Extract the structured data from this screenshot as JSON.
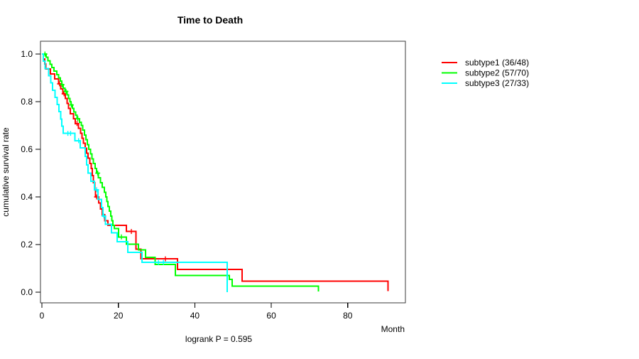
{
  "title": "Time to Death",
  "footer": "logrank P = 0.595",
  "axes": {
    "x_label": "Month",
    "y_label": "cumulative survival rate"
  },
  "chart_data": {
    "type": "line",
    "variant": "kaplan-meier-step",
    "title": "Time to Death",
    "xlabel": "Month",
    "ylabel": "cumulative survival rate",
    "annotation": "logrank P = 0.595",
    "xlim": [
      0,
      95
    ],
    "ylim": [
      0,
      1.0
    ],
    "xticks": [
      0,
      20,
      40,
      60,
      80
    ],
    "yticks": [
      0.0,
      0.2,
      0.4,
      0.6,
      0.8,
      1.0
    ],
    "grid": false,
    "legend_position": "right-outside",
    "series": [
      {
        "name": "subtype1 (36/48)",
        "color": "#ff0000",
        "steps": [
          [
            0,
            1.0
          ],
          [
            0.4,
            0.979
          ],
          [
            0.7,
            0.958
          ],
          [
            1.0,
            0.938
          ],
          [
            2.2,
            0.917
          ],
          [
            3.3,
            0.896
          ],
          [
            4.4,
            0.875
          ],
          [
            4.9,
            0.854
          ],
          [
            5.5,
            0.833
          ],
          [
            6.1,
            0.813
          ],
          [
            6.6,
            0.792
          ],
          [
            7.0,
            0.771
          ],
          [
            7.4,
            0.75
          ],
          [
            8.3,
            0.729
          ],
          [
            8.7,
            0.708
          ],
          [
            9.6,
            0.688
          ],
          [
            10.1,
            0.667
          ],
          [
            10.5,
            0.646
          ],
          [
            10.9,
            0.625
          ],
          [
            11.3,
            0.604
          ],
          [
            11.7,
            0.583
          ],
          [
            12.1,
            0.562
          ],
          [
            12.5,
            0.54
          ],
          [
            12.9,
            0.52
          ],
          [
            13.2,
            0.49
          ],
          [
            13.5,
            0.46
          ],
          [
            13.8,
            0.43
          ],
          [
            14.0,
            0.4
          ],
          [
            14.9,
            0.375
          ],
          [
            15.3,
            0.35
          ],
          [
            15.8,
            0.325
          ],
          [
            16.4,
            0.3
          ],
          [
            17.3,
            0.28
          ],
          [
            22.1,
            0.255
          ],
          [
            24.6,
            0.18
          ],
          [
            25.9,
            0.14
          ],
          [
            35.5,
            0.095
          ],
          [
            52.4,
            0.047
          ],
          [
            90.5,
            0.005
          ]
        ],
        "censor_marks": [
          [
            4.6,
            0.875
          ],
          [
            5.8,
            0.833
          ],
          [
            9.2,
            0.708
          ],
          [
            14.3,
            0.4
          ],
          [
            23.4,
            0.255
          ],
          [
            32.3,
            0.14
          ]
        ]
      },
      {
        "name": "subtype2 (57/70)",
        "color": "#00ff00",
        "steps": [
          [
            0,
            1.0
          ],
          [
            1.1,
            0.986
          ],
          [
            1.6,
            0.971
          ],
          [
            2.1,
            0.957
          ],
          [
            2.6,
            0.943
          ],
          [
            3.2,
            0.929
          ],
          [
            3.9,
            0.914
          ],
          [
            4.4,
            0.9
          ],
          [
            4.8,
            0.886
          ],
          [
            5.2,
            0.871
          ],
          [
            5.6,
            0.857
          ],
          [
            6.0,
            0.843
          ],
          [
            6.6,
            0.829
          ],
          [
            7.0,
            0.814
          ],
          [
            7.3,
            0.8
          ],
          [
            7.6,
            0.786
          ],
          [
            8.0,
            0.771
          ],
          [
            8.4,
            0.757
          ],
          [
            8.8,
            0.743
          ],
          [
            9.2,
            0.729
          ],
          [
            9.8,
            0.714
          ],
          [
            10.3,
            0.7
          ],
          [
            10.7,
            0.68
          ],
          [
            11.1,
            0.66
          ],
          [
            11.5,
            0.64
          ],
          [
            11.9,
            0.62
          ],
          [
            12.3,
            0.6
          ],
          [
            12.7,
            0.58
          ],
          [
            13.1,
            0.56
          ],
          [
            13.5,
            0.54
          ],
          [
            13.9,
            0.52
          ],
          [
            14.3,
            0.5
          ],
          [
            14.8,
            0.48
          ],
          [
            15.3,
            0.46
          ],
          [
            15.8,
            0.44
          ],
          [
            16.3,
            0.42
          ],
          [
            16.7,
            0.4
          ],
          [
            17.0,
            0.38
          ],
          [
            17.3,
            0.36
          ],
          [
            17.6,
            0.34
          ],
          [
            18.0,
            0.32
          ],
          [
            18.3,
            0.3
          ],
          [
            18.6,
            0.28
          ],
          [
            18.9,
            0.267
          ],
          [
            20.1,
            0.232
          ],
          [
            22.1,
            0.202
          ],
          [
            25.3,
            0.177
          ],
          [
            27.1,
            0.147
          ],
          [
            29.6,
            0.117
          ],
          [
            34.9,
            0.07
          ],
          [
            49.0,
            0.053
          ],
          [
            49.8,
            0.025
          ],
          [
            72.3,
            0.003
          ]
        ],
        "censor_marks": [
          [
            0.8,
            1.0
          ],
          [
            5.3,
            0.871
          ],
          [
            6.3,
            0.843
          ],
          [
            7.7,
            0.786
          ],
          [
            9.4,
            0.729
          ],
          [
            14.6,
            0.5
          ],
          [
            20.8,
            0.232
          ]
        ]
      },
      {
        "name": "subtype3 (27/33)",
        "color": "#00ffff",
        "steps": [
          [
            0,
            1.0
          ],
          [
            0.4,
            0.97
          ],
          [
            0.8,
            0.939
          ],
          [
            1.8,
            0.909
          ],
          [
            2.3,
            0.879
          ],
          [
            2.8,
            0.848
          ],
          [
            3.4,
            0.818
          ],
          [
            4.0,
            0.788
          ],
          [
            4.5,
            0.758
          ],
          [
            4.9,
            0.727
          ],
          [
            5.2,
            0.697
          ],
          [
            5.6,
            0.667
          ],
          [
            8.6,
            0.636
          ],
          [
            10.0,
            0.606
          ],
          [
            11.3,
            0.57
          ],
          [
            11.7,
            0.535
          ],
          [
            12.1,
            0.5
          ],
          [
            12.8,
            0.465
          ],
          [
            13.7,
            0.43
          ],
          [
            14.7,
            0.39
          ],
          [
            15.6,
            0.355
          ],
          [
            16.0,
            0.32
          ],
          [
            16.6,
            0.285
          ],
          [
            18.2,
            0.25
          ],
          [
            19.7,
            0.212
          ],
          [
            22.5,
            0.167
          ],
          [
            26.2,
            0.125
          ],
          [
            48.5,
            0.0
          ]
        ],
        "censor_marks": [
          [
            6.8,
            0.667
          ],
          [
            7.5,
            0.667
          ],
          [
            9.6,
            0.636
          ],
          [
            14.3,
            0.43
          ],
          [
            16.2,
            0.32
          ],
          [
            30.5,
            0.125
          ],
          [
            31.8,
            0.125
          ]
        ]
      }
    ]
  }
}
